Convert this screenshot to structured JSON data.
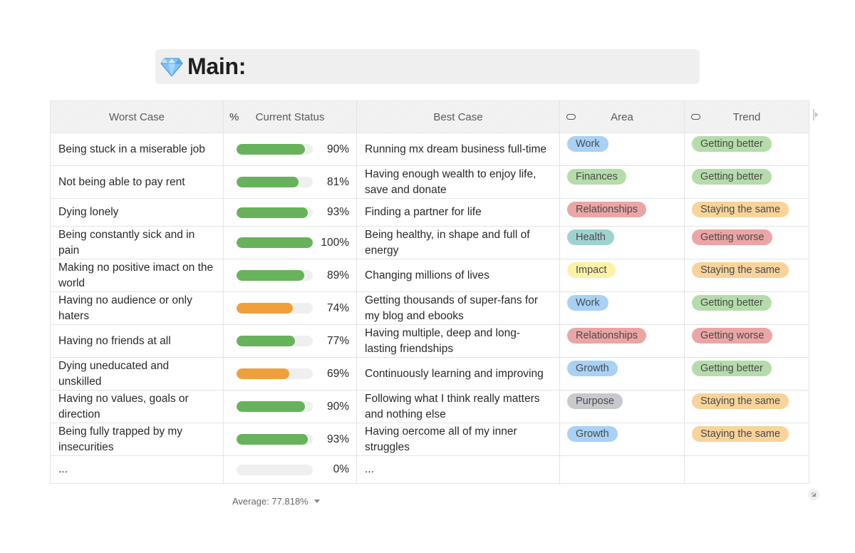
{
  "page": {
    "title": "Main:",
    "title_icon": "gem-icon"
  },
  "table": {
    "columns": [
      {
        "key": "worst",
        "label": "Worst Case",
        "icon": ""
      },
      {
        "key": "status",
        "label": "Current Status",
        "icon": "percent-icon",
        "icon_glyph": "%"
      },
      {
        "key": "best",
        "label": "Best Case",
        "icon": ""
      },
      {
        "key": "area",
        "label": "Area",
        "icon": "select-icon"
      },
      {
        "key": "trend",
        "label": "Trend",
        "icon": "select-icon"
      }
    ],
    "rows": [
      {
        "worst": "Being stuck in a miserable job",
        "pct": 90,
        "pct_label": "90%",
        "best": "Running mx dream business full-time",
        "area": "Work",
        "trend": "Getting better"
      },
      {
        "worst": "Not being able to pay rent",
        "pct": 81,
        "pct_label": "81%",
        "best": "Having enough wealth to enjoy life, save and donate",
        "area": "Finances",
        "trend": "Getting better"
      },
      {
        "worst": "Dying lonely",
        "pct": 93,
        "pct_label": "93%",
        "best": "Finding a partner for life",
        "area": "Relationships",
        "trend": "Staying the same"
      },
      {
        "worst": "Being constantly sick and in pain",
        "pct": 100,
        "pct_label": "100%",
        "best": "Being healthy, in shape and full of energy",
        "area": "Health",
        "trend": "Getting worse"
      },
      {
        "worst": "Making no positive imact on the world",
        "pct": 89,
        "pct_label": "89%",
        "best": "Changing millions of lives",
        "area": "Impact",
        "trend": "Staying the same"
      },
      {
        "worst": "Having no audience or only haters",
        "pct": 74,
        "pct_label": "74%",
        "best": "Getting thousands of super-fans for my blog and ebooks",
        "area": "Work",
        "trend": "Getting better"
      },
      {
        "worst": "Having no friends at all",
        "pct": 77,
        "pct_label": "77%",
        "best": "Having multiple, deep and long-lasting friendships",
        "area": "Relationships",
        "trend": "Getting worse"
      },
      {
        "worst": "Dying uneducated and unskilled",
        "pct": 69,
        "pct_label": "69%",
        "best": "Continuously learning and improving",
        "area": "Growth",
        "trend": "Getting better"
      },
      {
        "worst": "Having no values, goals or direction",
        "pct": 90,
        "pct_label": "90%",
        "best": "Following what I think really matters and nothing else",
        "area": "Purpose",
        "trend": "Staying the same"
      },
      {
        "worst": "Being fully trapped by my insecurities",
        "pct": 93,
        "pct_label": "93%",
        "best": "Having oercome all of my inner struggles",
        "area": "Growth",
        "trend": "Staying the same"
      },
      {
        "worst": "...",
        "pct": 0,
        "pct_label": "0%",
        "best": "...",
        "area": "",
        "trend": ""
      }
    ],
    "area_colors": {
      "Work": "#a8d1f5",
      "Finances": "#b5dcaa",
      "Relationships": "#eba5a5",
      "Health": "#9fd3cf",
      "Impact": "#fbf2a8",
      "Growth": "#a8d1f5",
      "Purpose": "#c7c9cc"
    },
    "trend_colors": {
      "Getting better": "#b5dcaa",
      "Staying the same": "#f8d39a",
      "Getting worse": "#eba5a5"
    },
    "bar_colors": {
      "high": "#67b25a",
      "mid": "#f0a03a"
    }
  },
  "footer": {
    "average_label": "Average: 77.818%"
  }
}
